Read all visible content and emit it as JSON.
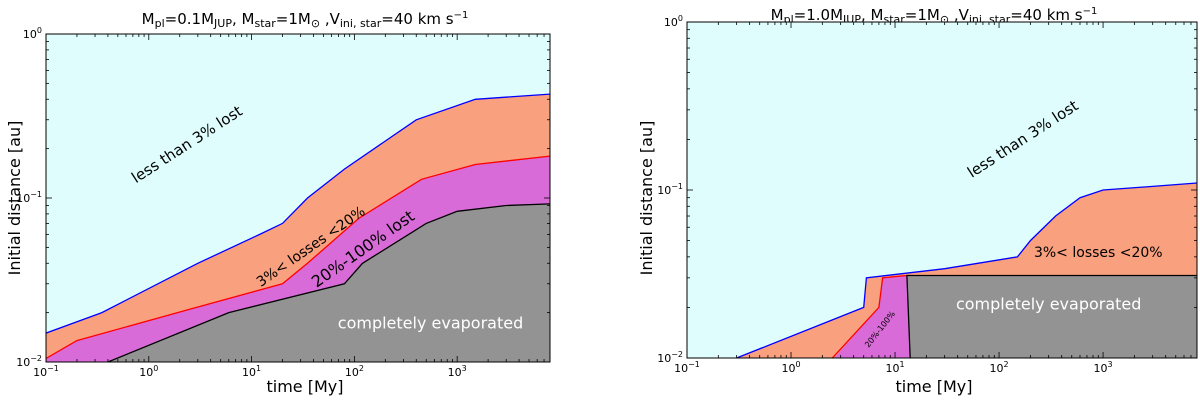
{
  "colors": {
    "sky": "#dffdfd",
    "salmon": "#f9a07e",
    "magenta": "#d86bd8",
    "gray": "#939393",
    "blue_line": "#0000ff",
    "red_line": "#ff0000",
    "black_line": "#000000"
  },
  "chart_data": [
    {
      "type": "area",
      "title": "M_pl=0.1M_JUP, M_star=1M_⊙ ,V_ini,star=40 km s^-1",
      "xlabel": "time [My]",
      "ylabel": "Initial distance [au]",
      "xscale": "log",
      "yscale": "log",
      "xlim": [
        0.1,
        8000
      ],
      "ylim": [
        0.01,
        1
      ],
      "xticks": [
        0.1,
        1,
        10,
        100,
        1000
      ],
      "yticks": [
        0.01,
        0.1,
        1
      ],
      "series": [
        {
          "name": "less than 3% lost",
          "color": "#dffdfd",
          "x": [],
          "values": []
        },
        {
          "name": "3%< losses <20%",
          "color": "#f9a07e",
          "line": "#0000ff",
          "x": [
            0.1,
            0.35,
            3,
            12,
            20,
            35,
            80,
            400,
            1500,
            8000
          ],
          "values": [
            0.015,
            0.02,
            0.04,
            0.06,
            0.07,
            0.1,
            0.15,
            0.3,
            0.4,
            0.43
          ]
        },
        {
          "name": "20%-100% lost",
          "color": "#d86bd8",
          "line": "#ff0000",
          "x": [
            0.1,
            0.2,
            2.5,
            20,
            35,
            110,
            450,
            1500,
            8000
          ],
          "values": [
            0.0105,
            0.0135,
            0.021,
            0.03,
            0.04,
            0.075,
            0.13,
            0.16,
            0.18
          ]
        },
        {
          "name": "completely evaporated",
          "color": "#939393",
          "line": "#000000",
          "x": [
            0.4,
            6,
            80,
            120,
            500,
            1000,
            3000,
            8000
          ],
          "values": [
            0.01,
            0.02,
            0.03,
            0.04,
            0.07,
            0.083,
            0.09,
            0.092
          ]
        }
      ],
      "labels": [
        {
          "text": "less than 3% lost",
          "x": 2.5,
          "y": 0.2,
          "rotation": -33
        },
        {
          "text": "3%< losses <20%",
          "x": 40,
          "y": 0.048,
          "rotation": -35
        },
        {
          "text": "20%-100% lost",
          "x": 130,
          "y": 0.046,
          "rotation": -35
        },
        {
          "text": "completely evaporated",
          "x": 550,
          "y": 0.016,
          "rotation": 0
        }
      ]
    },
    {
      "type": "area",
      "title": "M_pl=1.0M_JUP, M_star=1M_⊙ ,V_ini,star=40 km s^-1",
      "xlabel": "time [My]",
      "ylabel": "Initial distance [au]",
      "xscale": "log",
      "yscale": "log",
      "xlim": [
        0.1,
        8000
      ],
      "ylim": [
        0.01,
        1
      ],
      "xticks": [
        0.1,
        1,
        10,
        100,
        1000
      ],
      "yticks": [
        0.01,
        0.1,
        1
      ],
      "series": [
        {
          "name": "less than 3% lost",
          "color": "#dffdfd",
          "x": [],
          "values": []
        },
        {
          "name": "3%< losses <20%",
          "color": "#f9a07e",
          "line": "#0000ff",
          "x": [
            0.3,
            5,
            5.3,
            30,
            150,
            200,
            350,
            600,
            1000,
            3000,
            8000
          ],
          "values": [
            0.01,
            0.02,
            0.03,
            0.034,
            0.04,
            0.05,
            0.07,
            0.09,
            0.1,
            0.105,
            0.11
          ]
        },
        {
          "name": "20%-100%",
          "color": "#d86bd8",
          "line": "#ff0000",
          "x": [
            2.5,
            7,
            7.6,
            13
          ],
          "values": [
            0.01,
            0.02,
            0.03,
            0.031
          ]
        },
        {
          "name": "completely evaporated",
          "color": "#939393",
          "line": "#000000",
          "x": [
            14,
            13,
            8000
          ],
          "values": [
            0.01,
            0.031,
            0.031
          ]
        }
      ],
      "labels": [
        {
          "text": "less than 3% lost",
          "x": 180,
          "y": 0.19,
          "rotation": -33
        },
        {
          "text": "3%< losses <20%",
          "x": 900,
          "y": 0.04,
          "rotation": 0
        },
        {
          "text": "20%-100%",
          "x": 7.5,
          "y": 0.0145,
          "rotation": -52
        },
        {
          "text": "completely evaporated",
          "x": 300,
          "y": 0.0195,
          "rotation": 0
        }
      ]
    }
  ]
}
